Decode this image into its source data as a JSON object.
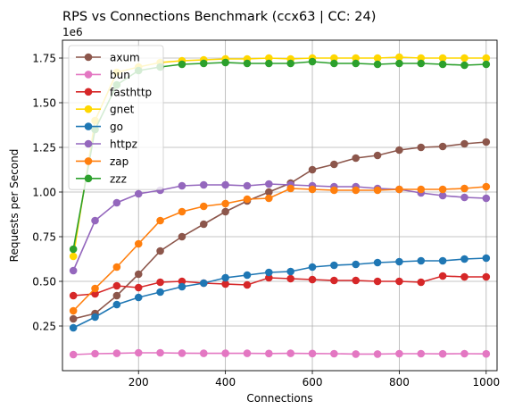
{
  "chart_data": {
    "type": "line",
    "title": "RPS vs Connections Benchmark (ccx63 | CC: 24)",
    "xlabel": "Connections",
    "ylabel": "Requests per Second",
    "y_scale_label": "1e6",
    "xlim": [
      25,
      1025
    ],
    "ylim": [
      0.0,
      1.85
    ],
    "xticks": [
      200,
      400,
      600,
      800,
      1000
    ],
    "xtick_labels": [
      "200",
      "400",
      "600",
      "800",
      "1000"
    ],
    "yticks": [
      0.25,
      0.5,
      0.75,
      1.0,
      1.25,
      1.5,
      1.75
    ],
    "ytick_labels": [
      "0.25",
      "0.50",
      "0.75",
      "1.00",
      "1.25",
      "1.50",
      "1.75"
    ],
    "grid": true,
    "legend_position": "upper-left",
    "marker": "circle",
    "x": [
      50,
      100,
      150,
      200,
      250,
      300,
      350,
      400,
      450,
      500,
      550,
      600,
      650,
      700,
      750,
      800,
      850,
      900,
      950,
      1000
    ],
    "series": [
      {
        "name": "axum",
        "color": "#8c564b",
        "values": [
          0.29,
          0.32,
          0.42,
          0.54,
          0.67,
          0.75,
          0.82,
          0.89,
          0.95,
          1.0,
          1.05,
          1.125,
          1.155,
          1.19,
          1.205,
          1.235,
          1.25,
          1.255,
          1.27,
          1.28
        ]
      },
      {
        "name": "bun",
        "color": "#e377c2",
        "values": [
          0.09,
          0.095,
          0.097,
          0.1,
          0.1,
          0.098,
          0.097,
          0.097,
          0.097,
          0.096,
          0.097,
          0.096,
          0.095,
          0.093,
          0.093,
          0.095,
          0.095,
          0.094,
          0.095,
          0.094
        ]
      },
      {
        "name": "fasthttp",
        "color": "#d62728",
        "values": [
          0.42,
          0.43,
          0.475,
          0.465,
          0.495,
          0.5,
          0.49,
          0.485,
          0.48,
          0.52,
          0.515,
          0.51,
          0.505,
          0.505,
          0.5,
          0.5,
          0.495,
          0.53,
          0.525,
          0.525
        ]
      },
      {
        "name": "gnet",
        "color": "#ffd700",
        "values": [
          0.64,
          1.4,
          1.67,
          1.7,
          1.725,
          1.735,
          1.74,
          1.745,
          1.745,
          1.75,
          1.745,
          1.75,
          1.75,
          1.75,
          1.75,
          1.755,
          1.75,
          1.75,
          1.75,
          1.75
        ]
      },
      {
        "name": "go",
        "color": "#1f77b4",
        "values": [
          0.24,
          0.3,
          0.37,
          0.41,
          0.44,
          0.47,
          0.49,
          0.52,
          0.535,
          0.55,
          0.555,
          0.58,
          0.59,
          0.595,
          0.605,
          0.61,
          0.615,
          0.615,
          0.625,
          0.63
        ]
      },
      {
        "name": "httpz",
        "color": "#9467bd",
        "values": [
          0.56,
          0.84,
          0.94,
          0.99,
          1.01,
          1.035,
          1.04,
          1.04,
          1.035,
          1.045,
          1.04,
          1.035,
          1.03,
          1.03,
          1.02,
          1.015,
          0.995,
          0.98,
          0.97,
          0.965
        ]
      },
      {
        "name": "zap",
        "color": "#ff7f0e",
        "values": [
          0.335,
          0.46,
          0.58,
          0.71,
          0.84,
          0.89,
          0.92,
          0.935,
          0.96,
          0.965,
          1.02,
          1.015,
          1.01,
          1.01,
          1.01,
          1.015,
          1.015,
          1.015,
          1.02,
          1.03
        ]
      },
      {
        "name": "zzz",
        "color": "#2ca02c",
        "values": [
          0.68,
          1.35,
          1.6,
          1.68,
          1.7,
          1.715,
          1.72,
          1.725,
          1.72,
          1.72,
          1.72,
          1.73,
          1.72,
          1.72,
          1.715,
          1.72,
          1.72,
          1.715,
          1.71,
          1.715
        ]
      }
    ]
  }
}
